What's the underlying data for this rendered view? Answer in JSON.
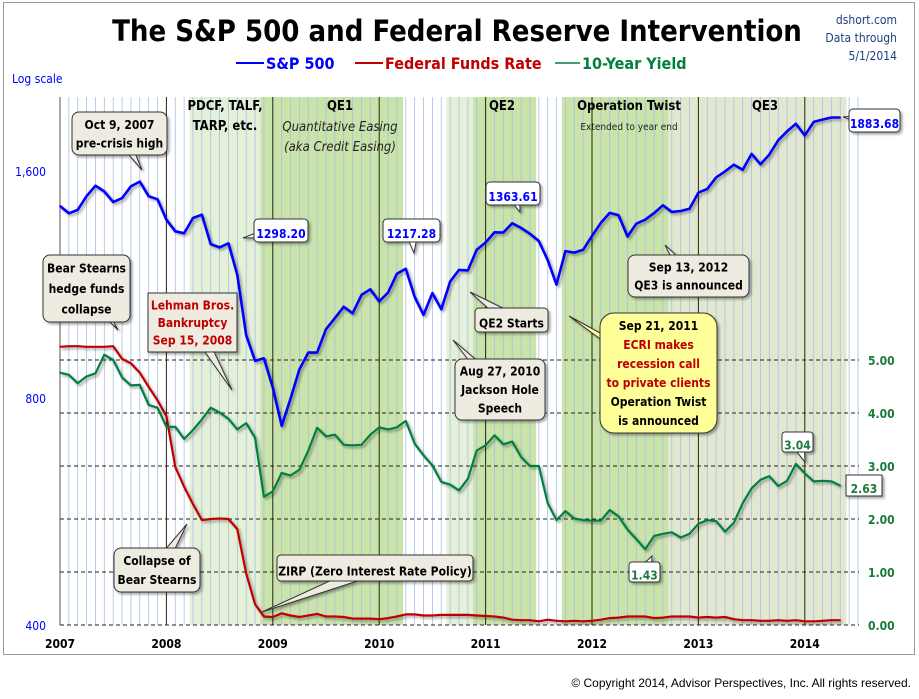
{
  "chart_data": {
    "type": "line",
    "title": "The S&P 500 and Federal Reserve Intervention",
    "source": [
      "dshort.com",
      "Data through",
      "5/1/2014"
    ],
    "left_axis_note": "Log scale",
    "x_start": "2007-01",
    "x_frequency": "monthly",
    "x_tick_labels": [
      "2007",
      "2008",
      "2009",
      "2010",
      "2011",
      "2012",
      "2013",
      "2014"
    ],
    "left_axis": {
      "scale": "log",
      "ylim": [
        400,
        2000
      ],
      "tick_labels": [
        "400",
        "800",
        "1,600"
      ],
      "tick_values": [
        400,
        800,
        1600
      ]
    },
    "right_axis": {
      "scale": "linear",
      "ylim": [
        0,
        6.2
      ],
      "tick_labels": [
        "0.00",
        "1.00",
        "2.00",
        "3.00",
        "4.00",
        "5.00"
      ],
      "tick_values": [
        0,
        1,
        2,
        3,
        4,
        5
      ]
    },
    "grid": "dashed horizontal at right-axis ticks; monthly vertical lines",
    "legend_placement": "top-center",
    "series": [
      {
        "name": "S&P 500",
        "axis": "left",
        "color": "#0000ff",
        "values": [
          1438,
          1406,
          1421,
          1482,
          1530,
          1503,
          1455,
          1473,
          1527,
          1549,
          1481,
          1468,
          1379,
          1331,
          1323,
          1386,
          1400,
          1280,
          1267,
          1283,
          1165,
          969,
          896,
          903,
          826,
          735,
          798,
          873,
          919,
          919,
          987,
          1021,
          1057,
          1036,
          1096,
          1115,
          1074,
          1104,
          1169,
          1187,
          1089,
          1031,
          1102,
          1049,
          1141,
          1183,
          1181,
          1258,
          1286,
          1327,
          1326,
          1364,
          1345,
          1321,
          1292,
          1219,
          1131,
          1253,
          1247,
          1258,
          1312,
          1366,
          1408,
          1398,
          1310,
          1362,
          1379,
          1407,
          1441,
          1412,
          1416,
          1426,
          1498,
          1515,
          1569,
          1598,
          1631,
          1606,
          1686,
          1633,
          1682,
          1757,
          1806,
          1848,
          1783,
          1859,
          1872,
          1884,
          1883.68
        ]
      },
      {
        "name": "Federal Funds Rate",
        "axis": "right",
        "color": "#c00000",
        "values": [
          5.25,
          5.26,
          5.26,
          5.25,
          5.25,
          5.25,
          5.26,
          5.02,
          4.94,
          4.76,
          4.49,
          4.24,
          3.94,
          2.98,
          2.61,
          2.28,
          1.98,
          2.0,
          2.01,
          2.0,
          1.81,
          0.97,
          0.39,
          0.16,
          0.15,
          0.22,
          0.18,
          0.15,
          0.18,
          0.21,
          0.16,
          0.16,
          0.15,
          0.12,
          0.12,
          0.12,
          0.11,
          0.13,
          0.16,
          0.2,
          0.2,
          0.18,
          0.18,
          0.19,
          0.19,
          0.19,
          0.19,
          0.18,
          0.17,
          0.16,
          0.14,
          0.1,
          0.09,
          0.09,
          0.07,
          0.1,
          0.08,
          0.07,
          0.08,
          0.07,
          0.08,
          0.1,
          0.13,
          0.14,
          0.16,
          0.16,
          0.16,
          0.13,
          0.14,
          0.16,
          0.16,
          0.16,
          0.14,
          0.15,
          0.14,
          0.15,
          0.11,
          0.09,
          0.09,
          0.08,
          0.08,
          0.09,
          0.08,
          0.09,
          0.07,
          0.07,
          0.08,
          0.09,
          0.09
        ]
      },
      {
        "name": "10-Year Yield",
        "axis": "right",
        "color": "#008040",
        "values": [
          4.76,
          4.72,
          4.56,
          4.69,
          4.75,
          5.1,
          5.0,
          4.67,
          4.52,
          4.53,
          4.15,
          4.1,
          3.74,
          3.74,
          3.51,
          3.68,
          3.88,
          4.1,
          4.01,
          3.89,
          3.69,
          3.81,
          3.53,
          2.42,
          2.52,
          2.87,
          2.82,
          2.93,
          3.29,
          3.72,
          3.56,
          3.59,
          3.4,
          3.39,
          3.4,
          3.59,
          3.73,
          3.69,
          3.73,
          3.85,
          3.42,
          3.2,
          3.01,
          2.7,
          2.65,
          2.54,
          2.76,
          3.29,
          3.39,
          3.58,
          3.41,
          3.46,
          3.17,
          3.0,
          3.0,
          2.3,
          1.98,
          2.15,
          2.01,
          1.98,
          1.97,
          1.97,
          2.17,
          2.05,
          1.8,
          1.62,
          1.43,
          1.68,
          1.72,
          1.75,
          1.65,
          1.72,
          1.91,
          1.98,
          1.96,
          1.76,
          1.93,
          2.3,
          2.58,
          2.74,
          2.81,
          2.62,
          2.72,
          3.04,
          2.86,
          2.71,
          2.72,
          2.71,
          2.63
        ]
      }
    ],
    "shaded_periods": [
      {
        "label": [
          "PDCF, TALF,",
          "TARP, etc."
        ],
        "start": "2008-03",
        "end": "2008-11",
        "color": "#e4f1d8"
      },
      {
        "label": [
          "QE1"
        ],
        "sublabel": [
          "Quantitative Easing",
          "(aka Credit Easing)"
        ],
        "start": "2008-11",
        "end": "2010-03",
        "color": "#c9e3a9"
      },
      {
        "label": [],
        "start": "2010-08",
        "end": "2010-11",
        "color": "#e4f1d8"
      },
      {
        "label": [
          "QE2"
        ],
        "start": "2010-11",
        "end": "2011-06",
        "color": "#c9e3a9"
      },
      {
        "label": [
          "Operation Twist"
        ],
        "sublabel": [
          "Extended to year end"
        ],
        "start": "2011-09",
        "end": "2012-09",
        "color": "#c9e3a9"
      },
      {
        "label": [
          "QE3"
        ],
        "start": "2012-09",
        "end": "2014-05",
        "color": "#e2e8cf"
      }
    ],
    "annotations": [
      {
        "lines": [
          "Oct 9, 2007",
          "pre-crisis high"
        ],
        "style": "note"
      },
      {
        "lines": [
          "Bear Stearns",
          "hedge funds",
          "collapse"
        ],
        "style": "note"
      },
      {
        "lines": [
          "Lehman Bros.",
          "Bankruptcy",
          "Sep 15, 2008"
        ],
        "style": "red"
      },
      {
        "lines": [
          "Collapse of",
          "Bear Stearns"
        ],
        "style": "note"
      },
      {
        "lines": [
          "ZIRP (Zero Interest Rate Policy)"
        ],
        "style": "note"
      },
      {
        "lines": [
          "1298.20"
        ],
        "style": "blue"
      },
      {
        "lines": [
          "1217.28"
        ],
        "style": "blue"
      },
      {
        "lines": [
          "1363.61"
        ],
        "style": "blue"
      },
      {
        "lines": [
          "1883.68"
        ],
        "style": "blue"
      },
      {
        "lines": [
          "Sep 13, 2012",
          "QE3 is announced"
        ],
        "style": "note"
      },
      {
        "lines": [
          "QE2 Starts"
        ],
        "style": "note"
      },
      {
        "lines": [
          "Aug 27, 2010",
          "Jackson Hole",
          "Speech"
        ],
        "style": "note"
      },
      {
        "lines": [
          "Sep 21, 2011",
          "ECRI makes",
          "recession call",
          "to private clients",
          "Operation Twist",
          "is announced"
        ],
        "style": "yellow"
      },
      {
        "lines": [
          "3.04"
        ],
        "style": "green"
      },
      {
        "lines": [
          "2.63"
        ],
        "style": "green-square"
      },
      {
        "lines": [
          "1.43"
        ],
        "style": "green"
      }
    ]
  },
  "copyright": "© Copyright 2014, Advisor Perspectives, Inc. All rights reserved."
}
